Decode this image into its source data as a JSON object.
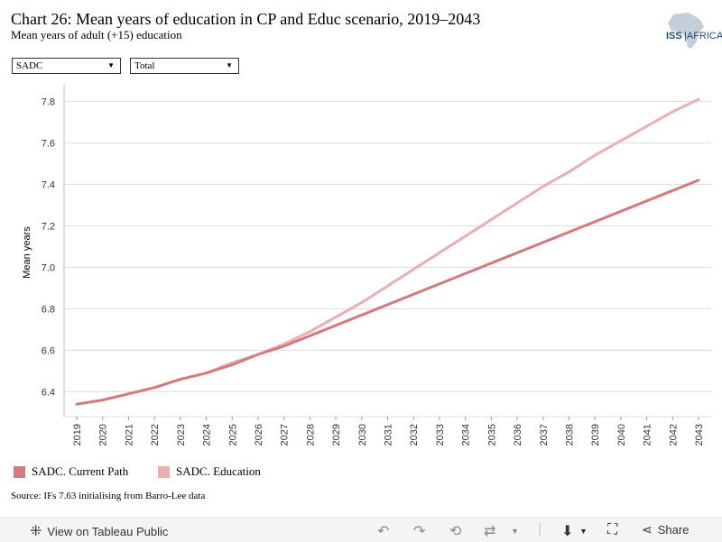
{
  "header": {
    "title": "Chart 26: Mean years of education in CP and Educ scenario, 2019–2043",
    "subtitle": "Mean years of adult (+15) education",
    "logo_text": "ISS|AFRICA"
  },
  "filters": {
    "region": {
      "selected": "SADC"
    },
    "group": {
      "selected": "Total"
    }
  },
  "chart_data": {
    "type": "line",
    "x": [
      2019,
      2020,
      2021,
      2022,
      2023,
      2024,
      2025,
      2026,
      2027,
      2028,
      2029,
      2030,
      2031,
      2032,
      2033,
      2034,
      2035,
      2036,
      2037,
      2038,
      2039,
      2040,
      2041,
      2042,
      2043
    ],
    "series": [
      {
        "name": "SADC. Current Path",
        "color": "#d37b7d",
        "values": [
          6.34,
          6.36,
          6.39,
          6.42,
          6.46,
          6.49,
          6.53,
          6.58,
          6.62,
          6.67,
          6.72,
          6.77,
          6.82,
          6.87,
          6.92,
          6.97,
          7.02,
          7.07,
          7.12,
          7.17,
          7.22,
          7.27,
          7.32,
          7.37,
          7.42
        ]
      },
      {
        "name": "SADC. Education",
        "color": "#e8b0b1",
        "values": [
          6.34,
          6.36,
          6.39,
          6.42,
          6.46,
          6.49,
          6.54,
          6.58,
          6.63,
          6.69,
          6.76,
          6.83,
          6.91,
          6.99,
          7.07,
          7.15,
          7.23,
          7.31,
          7.39,
          7.46,
          7.54,
          7.61,
          7.68,
          7.75,
          7.81
        ]
      }
    ],
    "ylabel": "Mean years",
    "y_ticks": [
      6.4,
      6.6,
      6.8,
      7.0,
      7.2,
      7.4,
      7.6,
      7.8
    ],
    "ylim": [
      6.28,
      7.88
    ],
    "grid": true,
    "legend_position": "bottom-left"
  },
  "source": "Source: IFs 7.63 initialising from Barro-Lee data",
  "toolbar": {
    "view_label": "View on Tableau Public",
    "share_label": "Share"
  }
}
